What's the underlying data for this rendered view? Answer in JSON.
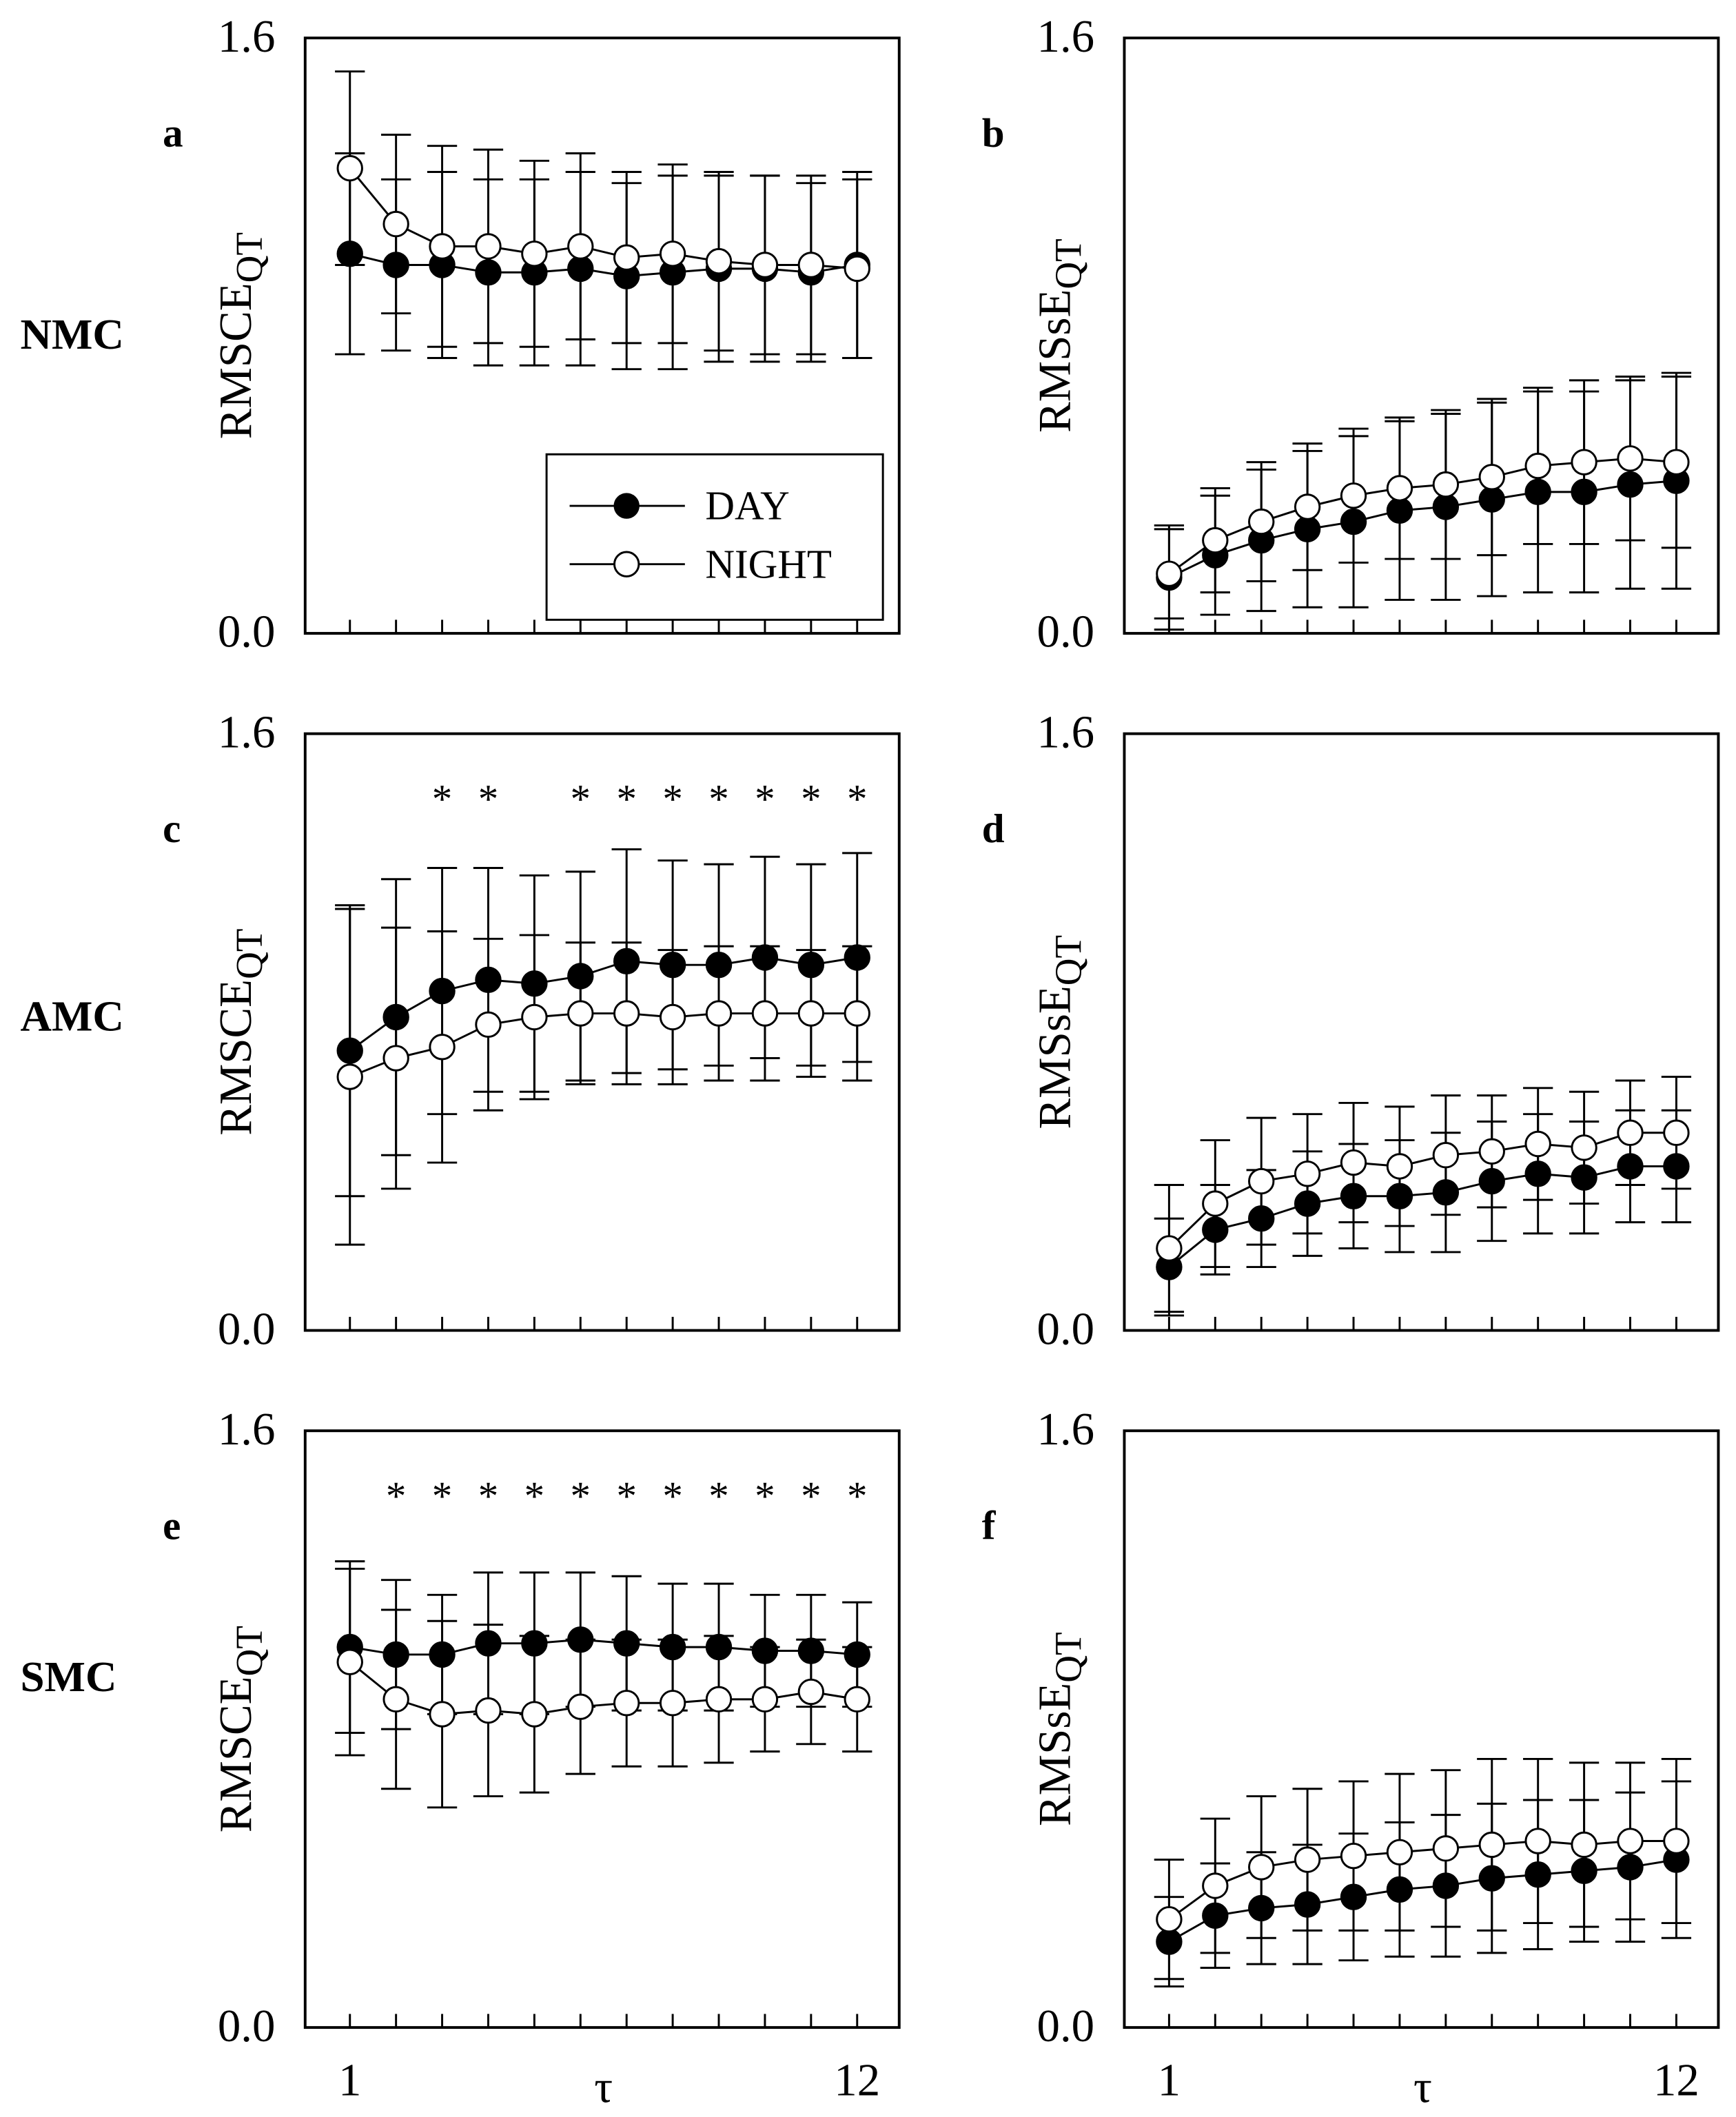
{
  "colors": {
    "day": "#000000",
    "night": "#ffffff",
    "axis": "#000000"
  },
  "legend": {
    "day": "DAY",
    "night": "NIGHT"
  },
  "row_labels": [
    "NMC",
    "AMC",
    "SMC"
  ],
  "chart_data": [
    {
      "type": "line",
      "panel": "a",
      "row": "NMC",
      "ylabel": "RMSCE",
      "ylabel_sub": "QT",
      "xlabel": "τ",
      "x": [
        1,
        2,
        3,
        4,
        5,
        6,
        7,
        8,
        9,
        10,
        11,
        12
      ],
      "xticklabels": [
        "1",
        "12"
      ],
      "yticklabels": [
        "0.0",
        "1.6"
      ],
      "ylim": [
        0,
        1.6
      ],
      "legend": true,
      "stars": [],
      "series": [
        {
          "name": "DAY",
          "values": [
            1.02,
            0.99,
            0.99,
            0.97,
            0.97,
            0.98,
            0.96,
            0.97,
            0.98,
            0.98,
            0.97,
            0.99
          ],
          "sd": [
            0.27,
            0.23,
            0.25,
            0.25,
            0.25,
            0.26,
            0.25,
            0.26,
            0.25,
            0.25,
            0.24,
            0.25
          ]
        },
        {
          "name": "NIGHT",
          "values": [
            1.25,
            1.1,
            1.04,
            1.04,
            1.02,
            1.04,
            1.01,
            1.02,
            1.0,
            0.99,
            0.99,
            0.98
          ],
          "sd": [
            0.26,
            0.24,
            0.27,
            0.26,
            0.25,
            0.25,
            0.23,
            0.24,
            0.24,
            0.24,
            0.24,
            0.24
          ]
        }
      ]
    },
    {
      "type": "line",
      "panel": "b",
      "row": "NMC",
      "ylabel": "RMSsE",
      "ylabel_sub": "QT",
      "xlabel": "τ",
      "x": [
        1,
        2,
        3,
        4,
        5,
        6,
        7,
        8,
        9,
        10,
        11,
        12
      ],
      "xticklabels": [
        "1",
        "12"
      ],
      "yticklabels": [
        "0.0",
        "1.6"
      ],
      "ylim": [
        0,
        1.6
      ],
      "legend": false,
      "stars": [],
      "series": [
        {
          "name": "DAY",
          "values": [
            0.15,
            0.21,
            0.25,
            0.28,
            0.3,
            0.33,
            0.34,
            0.36,
            0.38,
            0.38,
            0.4,
            0.41
          ],
          "sd": [
            0.14,
            0.16,
            0.19,
            0.21,
            0.23,
            0.24,
            0.25,
            0.26,
            0.27,
            0.27,
            0.28,
            0.29
          ]
        },
        {
          "name": "NIGHT",
          "values": [
            0.16,
            0.25,
            0.3,
            0.34,
            0.37,
            0.39,
            0.4,
            0.42,
            0.45,
            0.46,
            0.47,
            0.46
          ],
          "sd": [
            0.12,
            0.14,
            0.16,
            0.17,
            0.18,
            0.19,
            0.2,
            0.21,
            0.21,
            0.22,
            0.22,
            0.23
          ]
        }
      ]
    },
    {
      "type": "line",
      "panel": "c",
      "row": "AMC",
      "ylabel": "RMSCE",
      "ylabel_sub": "QT",
      "xlabel": "τ",
      "x": [
        1,
        2,
        3,
        4,
        5,
        6,
        7,
        8,
        9,
        10,
        11,
        12
      ],
      "xticklabels": [
        "1",
        "12"
      ],
      "yticklabels": [
        "0.0",
        "1.6"
      ],
      "ylim": [
        0,
        1.6
      ],
      "legend": false,
      "stars": [
        3,
        4,
        6,
        7,
        8,
        9,
        10,
        11,
        12
      ],
      "series": [
        {
          "name": "DAY",
          "values": [
            0.75,
            0.84,
            0.91,
            0.94,
            0.93,
            0.95,
            0.99,
            0.98,
            0.98,
            1.0,
            0.98,
            1.0
          ],
          "sd": [
            0.39,
            0.37,
            0.33,
            0.3,
            0.29,
            0.28,
            0.3,
            0.28,
            0.27,
            0.27,
            0.27,
            0.28
          ]
        },
        {
          "name": "NIGHT",
          "values": [
            0.68,
            0.73,
            0.76,
            0.82,
            0.84,
            0.85,
            0.85,
            0.84,
            0.85,
            0.85,
            0.85,
            0.85
          ],
          "sd": [
            0.45,
            0.35,
            0.31,
            0.23,
            0.22,
            0.19,
            0.19,
            0.18,
            0.18,
            0.18,
            0.17,
            0.18
          ]
        }
      ]
    },
    {
      "type": "line",
      "panel": "d",
      "row": "AMC",
      "ylabel": "RMSsE",
      "ylabel_sub": "QT",
      "xlabel": "τ",
      "x": [
        1,
        2,
        3,
        4,
        5,
        6,
        7,
        8,
        9,
        10,
        11,
        12
      ],
      "xticklabels": [
        "1",
        "12"
      ],
      "yticklabels": [
        "0.0",
        "1.6"
      ],
      "ylim": [
        0,
        1.6
      ],
      "legend": false,
      "stars": [],
      "series": [
        {
          "name": "DAY",
          "values": [
            0.17,
            0.27,
            0.3,
            0.34,
            0.36,
            0.36,
            0.37,
            0.4,
            0.42,
            0.41,
            0.44,
            0.44
          ],
          "sd": [
            0.13,
            0.12,
            0.13,
            0.14,
            0.14,
            0.15,
            0.16,
            0.16,
            0.16,
            0.15,
            0.15,
            0.15
          ]
        },
        {
          "name": "NIGHT",
          "values": [
            0.22,
            0.34,
            0.4,
            0.42,
            0.45,
            0.44,
            0.47,
            0.48,
            0.5,
            0.49,
            0.53,
            0.53
          ],
          "sd": [
            0.17,
            0.17,
            0.17,
            0.16,
            0.16,
            0.16,
            0.16,
            0.15,
            0.15,
            0.15,
            0.14,
            0.15
          ]
        }
      ]
    },
    {
      "type": "line",
      "panel": "e",
      "row": "SMC",
      "ylabel": "RMSCE",
      "ylabel_sub": "QT",
      "xlabel": "τ",
      "x": [
        1,
        2,
        3,
        4,
        5,
        6,
        7,
        8,
        9,
        10,
        11,
        12
      ],
      "xticklabels": [
        "1",
        "12"
      ],
      "yticklabels": [
        "0.0",
        "1.6"
      ],
      "ylim": [
        0,
        1.6
      ],
      "legend": false,
      "stars": [
        2,
        3,
        4,
        5,
        6,
        7,
        8,
        9,
        10,
        11,
        12
      ],
      "series": [
        {
          "name": "DAY",
          "values": [
            1.02,
            1.0,
            1.0,
            1.03,
            1.03,
            1.04,
            1.03,
            1.02,
            1.02,
            1.01,
            1.01,
            1.0
          ],
          "sd": [
            0.23,
            0.2,
            0.16,
            0.19,
            0.19,
            0.18,
            0.18,
            0.17,
            0.17,
            0.15,
            0.15,
            0.14
          ]
        },
        {
          "name": "NIGHT",
          "values": [
            0.98,
            0.88,
            0.84,
            0.85,
            0.84,
            0.86,
            0.87,
            0.87,
            0.88,
            0.88,
            0.9,
            0.88
          ],
          "sd": [
            0.25,
            0.24,
            0.25,
            0.23,
            0.21,
            0.18,
            0.17,
            0.17,
            0.17,
            0.14,
            0.14,
            0.14
          ]
        }
      ]
    },
    {
      "type": "line",
      "panel": "f",
      "row": "SMC",
      "ylabel": "RMSsE",
      "ylabel_sub": "QT",
      "xlabel": "τ",
      "x": [
        1,
        2,
        3,
        4,
        5,
        6,
        7,
        8,
        9,
        10,
        11,
        12
      ],
      "xticklabels": [
        "1",
        "12"
      ],
      "yticklabels": [
        "0.0",
        "1.6"
      ],
      "ylim": [
        0,
        1.6
      ],
      "legend": false,
      "stars": [],
      "series": [
        {
          "name": "DAY",
          "values": [
            0.23,
            0.3,
            0.32,
            0.33,
            0.35,
            0.37,
            0.38,
            0.4,
            0.41,
            0.42,
            0.43,
            0.45
          ],
          "sd": [
            0.12,
            0.14,
            0.15,
            0.16,
            0.17,
            0.18,
            0.19,
            0.2,
            0.2,
            0.19,
            0.2,
            0.21
          ]
        },
        {
          "name": "NIGHT",
          "values": [
            0.29,
            0.38,
            0.43,
            0.45,
            0.46,
            0.47,
            0.48,
            0.49,
            0.5,
            0.49,
            0.5,
            0.5
          ],
          "sd": [
            0.16,
            0.18,
            0.19,
            0.19,
            0.2,
            0.21,
            0.21,
            0.23,
            0.22,
            0.22,
            0.21,
            0.22
          ]
        }
      ]
    }
  ]
}
